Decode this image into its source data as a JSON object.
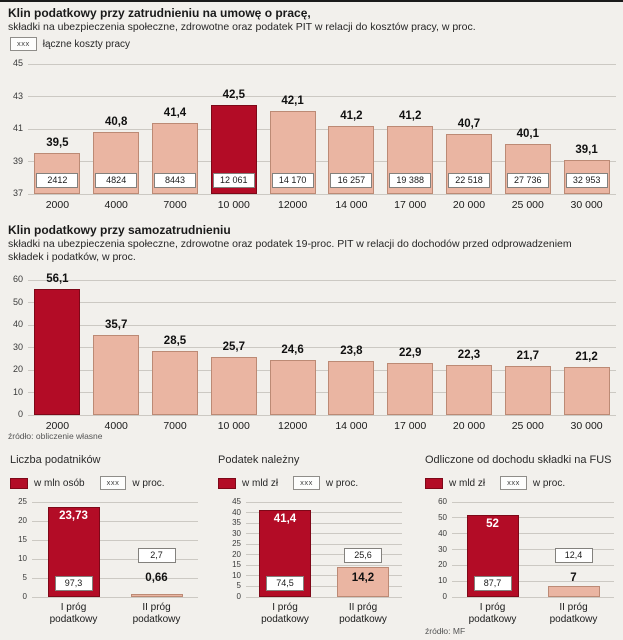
{
  "colors": {
    "background": "#f2f0ec",
    "salmon": "#eab5a2",
    "salmon_border": "#bc8a75",
    "dark_red": "#b30c26",
    "dark_red_border": "#7d0818",
    "grid": "#ccc9c3"
  },
  "chart_data": [
    {
      "id": "klin-umowa-o-prace",
      "type": "bar",
      "title": "Klin podatkowy przy zatrudnieniu na umowę o pracę,",
      "subtitle": "składki na ubezpieczenia społeczne, zdrowotne oraz podatek PIT w relacji do kosztów pracy, w proc.",
      "legend": [
        {
          "box": "xxx",
          "label": "łączne koszty pracy"
        }
      ],
      "legend_position": "top-left",
      "categories": [
        "2000",
        "4000",
        "7000",
        "10 000",
        "12000",
        "14 000",
        "17 000",
        "20 000",
        "25 000",
        "30 000"
      ],
      "values": [
        39.5,
        40.8,
        41.4,
        42.5,
        42.1,
        41.2,
        41.2,
        40.7,
        40.1,
        39.1
      ],
      "value_labels": [
        "39,5",
        "40,8",
        "41,4",
        "42,5",
        "42,1",
        "41,2",
        "41,2",
        "40,7",
        "40,1",
        "39,1"
      ],
      "box_labels": [
        "2412",
        "4824",
        "8443",
        "12 061",
        "14 170",
        "16 257",
        "19 388",
        "22 518",
        "27 736",
        "32 953"
      ],
      "highlight_index": 3,
      "ylim": [
        37,
        45
      ],
      "yticks": [
        45,
        43,
        41,
        39,
        37
      ],
      "grid": true
    },
    {
      "id": "klin-samozatrudnienie",
      "type": "bar",
      "title": "Klin podatkowy przy samozatrudnieniu",
      "subtitle": "składki na ubezpieczenia społeczne, zdrowotne oraz podatek 19-proc. PIT w relacji do dochodów przed odprowadzeniem składek i podatków, w proc.",
      "categories": [
        "2000",
        "4000",
        "7000",
        "10 000",
        "12000",
        "14 000",
        "17 000",
        "20 000",
        "25 000",
        "30 000"
      ],
      "values": [
        56.1,
        35.7,
        28.5,
        25.7,
        24.6,
        23.8,
        22.9,
        22.3,
        21.7,
        21.2
      ],
      "value_labels": [
        "56,1",
        "35,7",
        "28,5",
        "25,7",
        "24,6",
        "23,8",
        "22,9",
        "22,3",
        "21,7",
        "21,2"
      ],
      "highlight_index": 0,
      "ylim": [
        0,
        60
      ],
      "yticks": [
        60,
        50,
        40,
        30,
        20,
        10,
        0
      ],
      "grid": true,
      "source": "źródło: obliczenie własne"
    },
    {
      "id": "liczba-podatnikow",
      "type": "bar",
      "title": "Liczba podatników",
      "legend": [
        {
          "label": "w mln osób"
        },
        {
          "box": "xxx",
          "label": "w proc."
        }
      ],
      "categories": [
        "I próg\npodatkowy",
        "II próg\npodatkowy"
      ],
      "values": [
        23.73,
        0.66
      ],
      "value_labels": [
        "23,73",
        "0,66"
      ],
      "box_labels": [
        "97,3",
        "2,7"
      ],
      "highlight_index": 0,
      "ylim": [
        0,
        25
      ],
      "yticks": [
        25,
        20,
        15,
        10,
        5,
        0
      ],
      "grid": true
    },
    {
      "id": "podatek-nalezny",
      "type": "bar",
      "title": "Podatek należny",
      "legend": [
        {
          "label": "w mld zł"
        },
        {
          "box": "xxx",
          "label": "w proc."
        }
      ],
      "categories": [
        "I próg\npodatkowy",
        "II próg\npodatkowy"
      ],
      "values": [
        41.4,
        14.2
      ],
      "value_labels": [
        "41,4",
        "14,2"
      ],
      "box_labels": [
        "74,5",
        "25,6"
      ],
      "highlight_index": 0,
      "ylim": [
        0,
        45
      ],
      "yticks": [
        45,
        40,
        35,
        30,
        25,
        20,
        15,
        10,
        5,
        0
      ],
      "grid": true
    },
    {
      "id": "odliczone-skladki-fus",
      "type": "bar",
      "title": "Odliczone od dochodu składki na FUS",
      "legend": [
        {
          "label": "w mld zł"
        },
        {
          "box": "xxx",
          "label": "w proc."
        }
      ],
      "categories": [
        "I próg\npodatkowy",
        "II próg\npodatkowy"
      ],
      "values": [
        52,
        7
      ],
      "value_labels": [
        "52",
        "7"
      ],
      "box_labels": [
        "87,7",
        "12,4"
      ],
      "highlight_index": 0,
      "ylim": [
        0,
        60
      ],
      "yticks": [
        60,
        50,
        40,
        30,
        20,
        10,
        0
      ],
      "grid": true,
      "source": "źródło: MF"
    }
  ]
}
